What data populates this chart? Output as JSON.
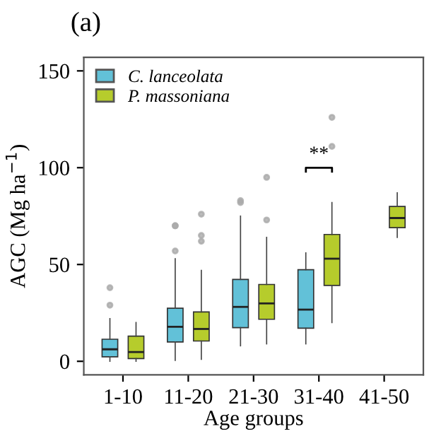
{
  "chart_data": {
    "type": "box",
    "title": "(a)",
    "xlabel": "Age groups",
    "ylabel": "AGC (Mg ha$^{−1}$)",
    "categories": [
      "1-10",
      "11-20",
      "21-30",
      "31-40",
      "41-50"
    ],
    "ylim": [
      -7,
      157
    ],
    "yticks": [
      0,
      50,
      100,
      150
    ],
    "grid": false,
    "legend": "top left",
    "annotations": [
      "**"
    ],
    "series": [
      {
        "name": "C. lanceolata",
        "color": "#62c1d8",
        "boxes": [
          {
            "low": 0,
            "q1": 2.3,
            "median": 6.2,
            "q3": 11.4,
            "high": 22,
            "outliers": [
              29,
              38
            ]
          },
          {
            "low": 0.5,
            "q1": 10,
            "median": 17.8,
            "q3": 27.4,
            "high": 53,
            "outliers": [
              57,
              70,
              70
            ]
          },
          {
            "low": 8,
            "q1": 17.4,
            "median": 28.1,
            "q3": 42.3,
            "high": 75,
            "outliers": [
              82,
              83
            ]
          },
          {
            "low": 9,
            "q1": 17.1,
            "median": 26.7,
            "q3": 47.3,
            "high": 56
          },
          null
        ]
      },
      {
        "name": "P. massoniana",
        "color": "#b6cc2c",
        "boxes": [
          {
            "low": 0,
            "q1": 1.4,
            "median": 4.8,
            "q3": 13,
            "high": 20
          },
          {
            "low": 1,
            "q1": 10.5,
            "median": 16.7,
            "q3": 25.5,
            "high": 47,
            "outliers": [
              62,
              65,
              76
            ]
          },
          {
            "low": 9,
            "q1": 21.7,
            "median": 29.9,
            "q3": 39.7,
            "high": 64,
            "outliers": [
              73,
              95
            ]
          },
          {
            "low": 20,
            "q1": 39.2,
            "median": 53,
            "q3": 65.5,
            "high": 82,
            "outliers": [
              111,
              126
            ]
          },
          {
            "low": 64,
            "q1": 69,
            "median": 74,
            "q3": 80,
            "high": 87
          }
        ]
      }
    ]
  }
}
